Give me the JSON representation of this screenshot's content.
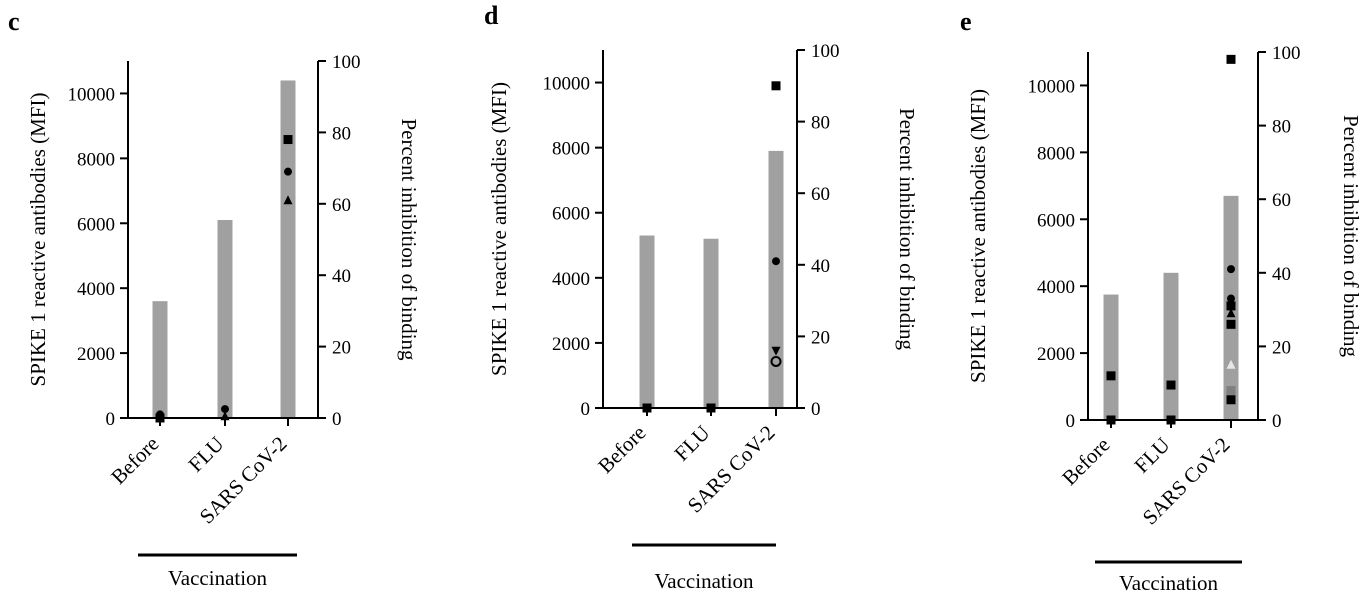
{
  "chart_data": [
    {
      "panel": "c",
      "type": "bar",
      "categories": [
        "Before",
        "FLU",
        "SARS CoV-2"
      ],
      "group_label": "Vaccination",
      "y_left": {
        "label": "SPIKE 1 reactive antibodies (MFI)",
        "ticks": [
          0,
          2000,
          4000,
          6000,
          8000,
          10000
        ],
        "lim": [
          0,
          11000
        ]
      },
      "y_right": {
        "label": "Percent inhibition of binding",
        "ticks": [
          0,
          20,
          40,
          60,
          80,
          100
        ],
        "lim": [
          0,
          100
        ]
      },
      "bar_color": "#a0a0a0",
      "values": [
        3600,
        6100,
        10400
      ],
      "points": [
        {
          "category": "Before",
          "y": 0,
          "marker": "square",
          "color": "#000000"
        },
        {
          "category": "Before",
          "y": 0.5,
          "marker": "triangle",
          "color": "#000000"
        },
        {
          "category": "Before",
          "y": 1,
          "marker": "circle",
          "color": "#000000"
        },
        {
          "category": "FLU",
          "y": 0.5,
          "marker": "triangle",
          "color": "#000000"
        },
        {
          "category": "FLU",
          "y": 2.5,
          "marker": "circle",
          "color": "#000000"
        },
        {
          "category": "SARS CoV-2",
          "y": 78,
          "marker": "square",
          "color": "#000000"
        },
        {
          "category": "SARS CoV-2",
          "y": 69,
          "marker": "circle",
          "color": "#000000"
        },
        {
          "category": "SARS CoV-2",
          "y": 61,
          "marker": "triangle",
          "color": "#000000"
        }
      ]
    },
    {
      "panel": "d",
      "type": "bar",
      "categories": [
        "Before",
        "FLU",
        "SARS CoV-2"
      ],
      "group_label": "Vaccination",
      "y_left": {
        "label": "SPIKE 1 reactive antibodies (MFI)",
        "ticks": [
          0,
          2000,
          4000,
          6000,
          8000,
          10000
        ],
        "lim": [
          0,
          11000
        ]
      },
      "y_right": {
        "label": "Percent inhibition of binding",
        "ticks": [
          0,
          20,
          40,
          60,
          80,
          100
        ],
        "lim": [
          0,
          100
        ]
      },
      "bar_color": "#a0a0a0",
      "values": [
        5300,
        5200,
        7900
      ],
      "points": [
        {
          "category": "Before",
          "y": 0,
          "marker": "square",
          "color": "#000000"
        },
        {
          "category": "Before",
          "y": 0,
          "marker": "circle",
          "color": "#000000"
        },
        {
          "category": "FLU",
          "y": 0,
          "marker": "square",
          "color": "#000000"
        },
        {
          "category": "FLU",
          "y": 0,
          "marker": "circle",
          "color": "#000000"
        },
        {
          "category": "SARS CoV-2",
          "y": 90,
          "marker": "square",
          "color": "#000000"
        },
        {
          "category": "SARS CoV-2",
          "y": 41,
          "marker": "circle",
          "color": "#000000"
        },
        {
          "category": "SARS CoV-2",
          "y": 16,
          "marker": "triangle-down",
          "color": "#000000"
        },
        {
          "category": "SARS CoV-2",
          "y": 13,
          "marker": "circle-open",
          "color": "#000000"
        }
      ]
    },
    {
      "panel": "e",
      "type": "bar",
      "categories": [
        "Before",
        "FLU",
        "SARS CoV-2"
      ],
      "group_label": "Vaccination",
      "y_left": {
        "label": "SPIKE 1 reactive antibodies (MFI)",
        "ticks": [
          0,
          2000,
          4000,
          6000,
          8000,
          10000
        ],
        "lim": [
          0,
          11000
        ]
      },
      "y_right": {
        "label": "Percent inhibition of binding",
        "ticks": [
          0,
          20,
          40,
          60,
          80,
          100
        ],
        "lim": [
          0,
          100
        ]
      },
      "bar_color": "#a0a0a0",
      "values": [
        3750,
        4400,
        6700
      ],
      "points": [
        {
          "category": "Before",
          "y": 12,
          "marker": "square",
          "color": "#000000"
        },
        {
          "category": "Before",
          "y": 0,
          "marker": "square",
          "color": "#000000"
        },
        {
          "category": "Before",
          "y": 0,
          "marker": "circle",
          "color": "#000000"
        },
        {
          "category": "FLU",
          "y": 9.5,
          "marker": "square",
          "color": "#000000"
        },
        {
          "category": "FLU",
          "y": 0,
          "marker": "square",
          "color": "#000000"
        },
        {
          "category": "FLU",
          "y": 0,
          "marker": "circle",
          "color": "#000000"
        },
        {
          "category": "SARS CoV-2",
          "y": 98,
          "marker": "square",
          "color": "#000000"
        },
        {
          "category": "SARS CoV-2",
          "y": 41,
          "marker": "circle",
          "color": "#000000"
        },
        {
          "category": "SARS CoV-2",
          "y": 33,
          "marker": "circle",
          "color": "#000000"
        },
        {
          "category": "SARS CoV-2",
          "y": 31,
          "marker": "square",
          "color": "#000000"
        },
        {
          "category": "SARS CoV-2",
          "y": 29,
          "marker": "triangle",
          "color": "#000000"
        },
        {
          "category": "SARS CoV-2",
          "y": 26,
          "marker": "square",
          "color": "#000000"
        },
        {
          "category": "SARS CoV-2",
          "y": 15,
          "marker": "triangle",
          "color": "#e6e6e6"
        },
        {
          "category": "SARS CoV-2",
          "y": 8,
          "marker": "square",
          "color": "#808080"
        },
        {
          "category": "SARS CoV-2",
          "y": 5.5,
          "marker": "square",
          "color": "#000000"
        }
      ]
    }
  ]
}
